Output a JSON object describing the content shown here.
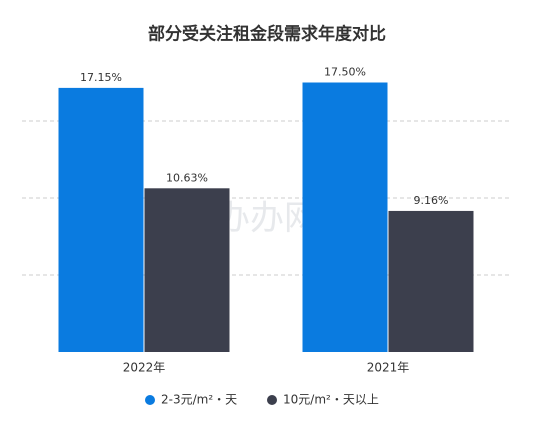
{
  "chart_data": {
    "type": "bar",
    "title": "部分受关注租金段需求年度对比",
    "categories": [
      "2022年",
      "2021年"
    ],
    "series": [
      {
        "name": "2-3元/m²・天",
        "color": "#0a7be0",
        "values": [
          17.15,
          17.5
        ],
        "value_labels": [
          "17.15%",
          "17.50%"
        ]
      },
      {
        "name": "10元/m²・天以上",
        "color": "#3c3f4d",
        "values": [
          10.63,
          9.16
        ],
        "value_labels": [
          "10.63%",
          "9.16%"
        ]
      }
    ],
    "ylim": [
      0,
      20
    ],
    "yticks": [
      5,
      10,
      15
    ],
    "grid": true,
    "legend": "bottom",
    "watermark": "办办网"
  }
}
